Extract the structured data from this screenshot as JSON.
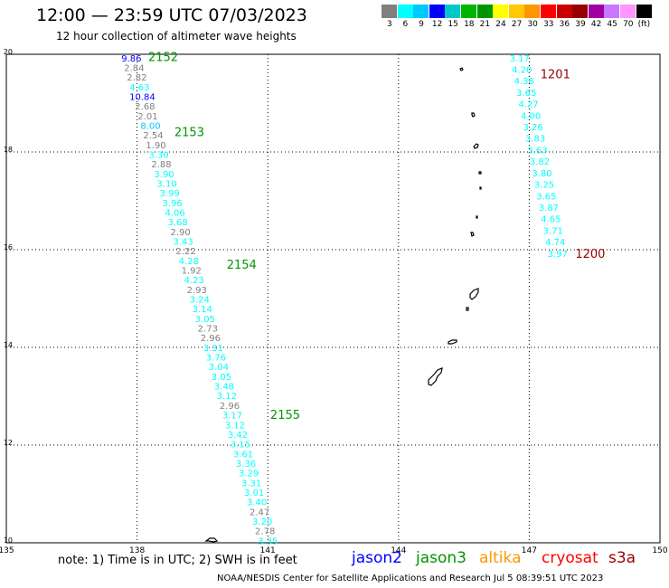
{
  "header": {
    "title": "12:00 — 23:59 UTC 07/03/2023",
    "subtitle": "12 hour collection of altimeter wave heights"
  },
  "legend": {
    "colors": [
      "#808080",
      "#00ffff",
      "#00c8ff",
      "#0000ff",
      "#00c8c8",
      "#00b400",
      "#009600",
      "#ffff00",
      "#ffc800",
      "#ff9600",
      "#ff0000",
      "#c80000",
      "#960000",
      "#a000a0",
      "#c878ff",
      "#ff96ff",
      "#000000"
    ],
    "labels": [
      "3",
      "6",
      "9",
      "12",
      "15",
      "18",
      "21",
      "24",
      "27",
      "30",
      "33",
      "36",
      "39",
      "42",
      "45",
      "70",
      "(ft)"
    ]
  },
  "map": {
    "lon_range": [
      135,
      150
    ],
    "lat_range": [
      10,
      20
    ],
    "x_ticks": [
      "135",
      "138",
      "141",
      "144",
      "147",
      "150"
    ],
    "y_ticks": [
      "20",
      "18",
      "16",
      "14",
      "12",
      "10"
    ],
    "grid": "dotted",
    "track_labels": [
      {
        "text": "2152",
        "lon": 138.6,
        "lat": 19.95,
        "color": "#009600"
      },
      {
        "text": "2153",
        "lon": 139.2,
        "lat": 18.42,
        "color": "#009600"
      },
      {
        "text": "2154",
        "lon": 140.4,
        "lat": 15.7,
        "color": "#009600"
      },
      {
        "text": "2155",
        "lon": 141.4,
        "lat": 12.63,
        "color": "#009600"
      },
      {
        "text": "1201",
        "lon": 147.6,
        "lat": 19.6,
        "color": "#960000"
      },
      {
        "text": "1200",
        "lon": 148.4,
        "lat": 15.93,
        "color": "#960000"
      }
    ],
    "tracks": [
      {
        "name": "2152-2155",
        "lon_start": 137.87,
        "lat_start": 19.93,
        "lon_end": 141.0,
        "lat_end": 10.05,
        "values": [
          "9.86",
          "2.84",
          "2.82",
          "4.63",
          "10.84",
          "2.68",
          "2.01",
          "8.00",
          "2.54",
          "1.90",
          "3.30",
          "2.88",
          "3.90",
          "3.10",
          "3.99",
          "3.96",
          "4.06",
          "3.68",
          "2.90",
          "3.43",
          "2.22",
          "4.28",
          "1.92",
          "4.23",
          "2.93",
          "3.24",
          "3.14",
          "3.05",
          "2.73",
          "2.96",
          "3.31",
          "3.76",
          "3.04",
          "3.05",
          "3.48",
          "3.12",
          "2.96",
          "3.17",
          "3.12",
          "3.42",
          "3.15",
          "3.61",
          "3.36",
          "3.29",
          "3.31",
          "3.01",
          "3.40",
          "2.47",
          "3.20",
          "2.78",
          "3.35"
        ]
      },
      {
        "name": "1200-1201",
        "lon_start": 146.78,
        "lat_start": 19.93,
        "lon_end": 147.65,
        "lat_end": 15.93,
        "values": [
          "3.17",
          "4.20",
          "4.38",
          "3.65",
          "4.27",
          "4.00",
          "3.26",
          "3.83",
          "3.63",
          "3.82",
          "3.80",
          "3.25",
          "3.65",
          "3.87",
          "4.65",
          "3.71",
          "4.74",
          "3.97"
        ]
      }
    ]
  },
  "footer": {
    "note": "note:  1) Time is in UTC;  2) SWH is in feet",
    "satellites": [
      {
        "name": "jason2",
        "color": "#0000ff"
      },
      {
        "name": "jason3",
        "color": "#009600"
      },
      {
        "name": "altika",
        "color": "#ff9600"
      },
      {
        "name": "cryosat",
        "color": "#ff0000"
      },
      {
        "name": "s3a",
        "color": "#960000"
      }
    ],
    "credit": "NOAA/NESDIS Center for Satellite Applications and Research    Jul  5 08:39:51 UTC 2023"
  }
}
